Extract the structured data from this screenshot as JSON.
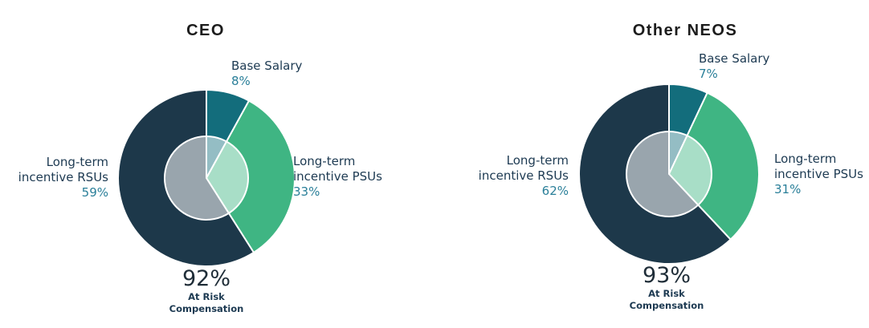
{
  "colors": {
    "base_salary": "#136d7c",
    "psus": "#3fb583",
    "rsus": "#1d384a",
    "label_text": "#1d3a52",
    "pct_text": "#2a7f99",
    "title_text": "#1c1c1c",
    "big_pct_text": "#1f2d38",
    "overlay_fill": "rgba(255,255,255,0.55)",
    "separator": "#ffffff",
    "background": "#ffffff"
  },
  "chart_data": [
    {
      "id": "ceo",
      "type": "pie",
      "variant": "pie-with-translucent-center-overlay",
      "title": "CEO",
      "direction": "clockwise",
      "start_angle_deg": 0,
      "legend_position": "callout-labels",
      "slices": [
        {
          "label": "Base Salary",
          "label_lines": [
            "Base Salary"
          ],
          "value": 8,
          "pct_label": "8%",
          "color_key": "base_salary"
        },
        {
          "label": "Long-term incentive PSUs",
          "label_lines": [
            "Long-term",
            "incentive PSUs"
          ],
          "value": 33,
          "pct_label": "33%",
          "color_key": "psus"
        },
        {
          "label": "Long-term incentive RSUs",
          "label_lines": [
            "Long-term",
            "incentive RSUs"
          ],
          "value": 59,
          "pct_label": "59%",
          "color_key": "rsus"
        }
      ],
      "center_note": {
        "big": "92%",
        "lines": [
          "At Risk",
          "Compensation"
        ]
      }
    },
    {
      "id": "other-neos",
      "type": "pie",
      "variant": "pie-with-translucent-center-overlay",
      "title": "Other NEOS",
      "direction": "clockwise",
      "start_angle_deg": 0,
      "legend_position": "callout-labels",
      "slices": [
        {
          "label": "Base Salary",
          "label_lines": [
            "Base Salary"
          ],
          "value": 7,
          "pct_label": "7%",
          "color_key": "base_salary"
        },
        {
          "label": "Long-term incentive PSUs",
          "label_lines": [
            "Long-term",
            "incentive PSUs"
          ],
          "value": 31,
          "pct_label": "31%",
          "color_key": "psus"
        },
        {
          "label": "Long-term incentive RSUs",
          "label_lines": [
            "Long-term",
            "incentive RSUs"
          ],
          "value": 62,
          "pct_label": "62%",
          "color_key": "rsus"
        }
      ],
      "center_note": {
        "big": "93%",
        "lines": [
          "At Risk",
          "Compensation"
        ]
      }
    }
  ]
}
